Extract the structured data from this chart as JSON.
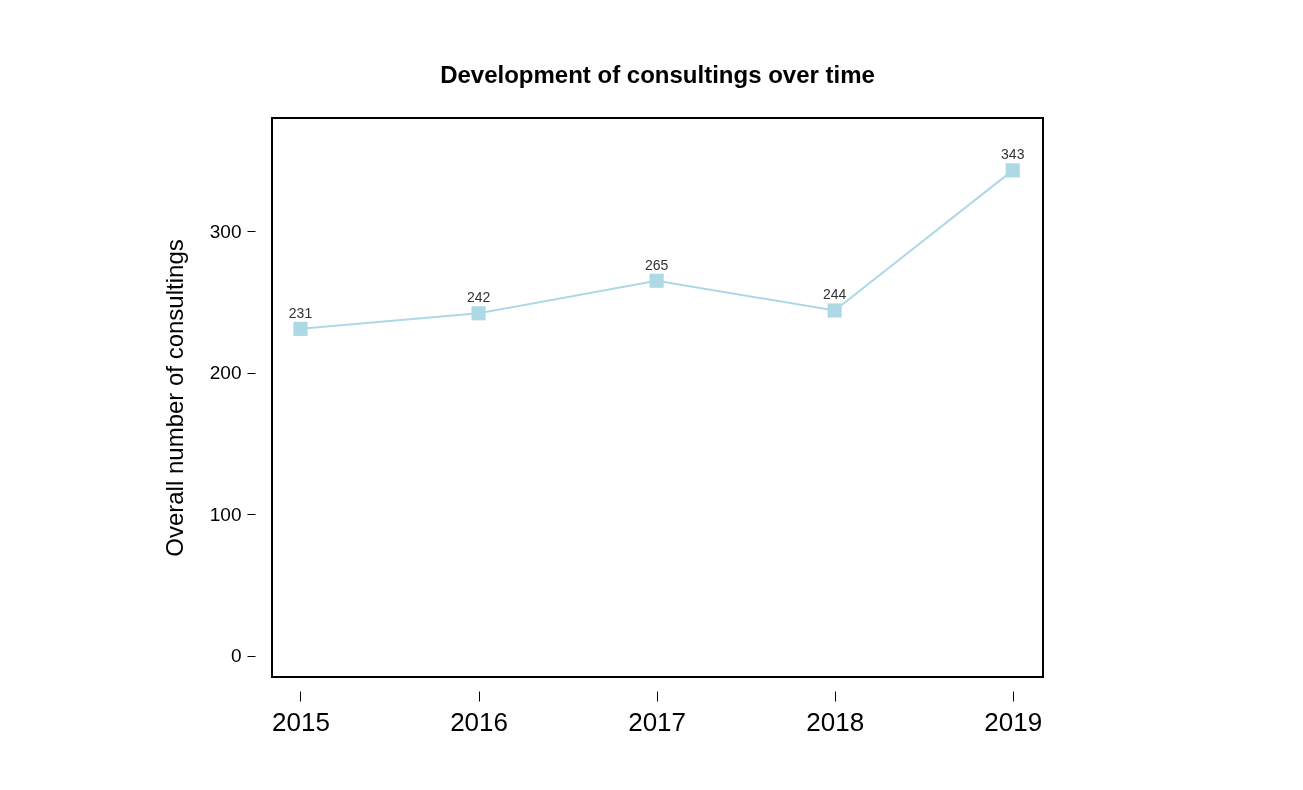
{
  "chart_data": {
    "type": "line",
    "title": "Development of consultings over time",
    "ylabel": "Overall number of consultings",
    "x": [
      2015,
      2016,
      2017,
      2018,
      2019
    ],
    "series": [
      {
        "color": "#add8e6",
        "values": [
          231,
          242,
          265,
          244,
          343
        ]
      }
    ],
    "xlim": [
      2014.84,
      2019.17
    ],
    "ylim": [
      -15,
      380
    ],
    "xticks": [
      2015,
      2016,
      2017,
      2018,
      2019
    ],
    "yticks": [
      0,
      100,
      200,
      300
    ],
    "marker": "square",
    "data_labels": true
  }
}
